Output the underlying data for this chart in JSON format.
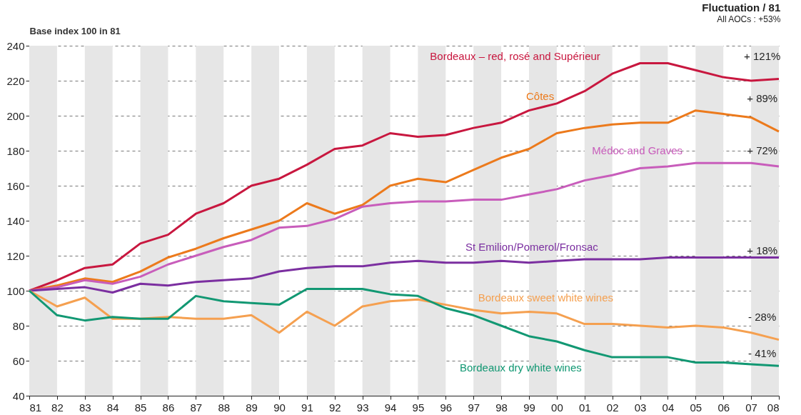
{
  "chart_data": {
    "type": "line",
    "title": "Fluctuation / 81",
    "subtitle": "All AOCs : +53%",
    "ylabel": "Base index 100 in 81",
    "categories": [
      "81",
      "82",
      "83",
      "84",
      "85",
      "86",
      "87",
      "88",
      "89",
      "90",
      "91",
      "92",
      "93",
      "94",
      "95",
      "96",
      "97",
      "98",
      "99",
      "00",
      "01",
      "02",
      "03",
      "04",
      "05",
      "06",
      "07",
      "08"
    ],
    "series": [
      {
        "name": "Bordeaux – red, rosé and Supérieur",
        "color": "#c8173f",
        "values": [
          100,
          106,
          113,
          115,
          127,
          132,
          144,
          150,
          160,
          164,
          172,
          181,
          183,
          190,
          188,
          189,
          193,
          196,
          203,
          207,
          214,
          224,
          230,
          230,
          226,
          222,
          220,
          221
        ]
      },
      {
        "name": "Côtes",
        "color": "#ec7a1c",
        "values": [
          100,
          103,
          107,
          105,
          111,
          119,
          124,
          130,
          135,
          140,
          150,
          144,
          149,
          160,
          164,
          162,
          169,
          176,
          181,
          190,
          193,
          195,
          196,
          196,
          203,
          201,
          199,
          191
        ]
      },
      {
        "name": "Médoc and Graves",
        "color": "#c85dbb",
        "values": [
          100,
          102,
          106,
          104,
          108,
          115,
          120,
          125,
          129,
          136,
          137,
          141,
          148,
          150,
          151,
          151,
          152,
          152,
          155,
          158,
          163,
          166,
          170,
          171,
          173,
          173,
          173,
          171
        ]
      },
      {
        "name": "St Emilion/Pomerol/Fronsac",
        "color": "#7b2fa0",
        "values": [
          100,
          101,
          102,
          99,
          104,
          103,
          105,
          106,
          107,
          111,
          113,
          114,
          114,
          116,
          117,
          116,
          116,
          117,
          116,
          117,
          118,
          118,
          118,
          119,
          119,
          119,
          119,
          119
        ]
      },
      {
        "name": "Bordeaux sweet white wines",
        "color": "#f5a050",
        "values": [
          100,
          91,
          96,
          84,
          84,
          85,
          84,
          84,
          86,
          76,
          88,
          80,
          91,
          94,
          95,
          92,
          89,
          87,
          88,
          87,
          81,
          81,
          80,
          79,
          80,
          79,
          76,
          72
        ]
      },
      {
        "name": "Bordeaux dry white wines",
        "color": "#129873",
        "values": [
          100,
          86,
          83,
          85,
          84,
          84,
          97,
          94,
          93,
          92,
          101,
          101,
          101,
          98,
          97,
          90,
          86,
          80,
          74,
          71,
          66,
          62,
          62,
          62,
          59,
          59,
          58,
          57
        ]
      }
    ],
    "annotations": [
      "+ 121%",
      "+ 89%",
      "+ 72%",
      "+ 18%",
      "- 28%",
      "- 41%"
    ],
    "bands": [
      {
        "axis": "x",
        "from": "81",
        "to": "82",
        "color": "#e6e6e6"
      },
      {
        "axis": "x",
        "from": "83",
        "to": "84",
        "color": "#e6e6e6"
      },
      {
        "axis": "x",
        "from": "85",
        "to": "86",
        "color": "#e6e6e6"
      },
      {
        "axis": "x",
        "from": "87",
        "to": "88",
        "color": "#e6e6e6"
      },
      {
        "axis": "x",
        "from": "89",
        "to": "90",
        "color": "#e6e6e6"
      },
      {
        "axis": "x",
        "from": "91",
        "to": "92",
        "color": "#e6e6e6"
      },
      {
        "axis": "x",
        "from": "93",
        "to": "94",
        "color": "#e6e6e6"
      },
      {
        "axis": "x",
        "from": "95",
        "to": "96",
        "color": "#e6e6e6"
      },
      {
        "axis": "x",
        "from": "97",
        "to": "98",
        "color": "#e6e6e6"
      },
      {
        "axis": "x",
        "from": "99",
        "to": "00",
        "color": "#e6e6e6"
      },
      {
        "axis": "x",
        "from": "01",
        "to": "02",
        "color": "#e6e6e6"
      },
      {
        "axis": "x",
        "from": "03",
        "to": "04",
        "color": "#e6e6e6"
      },
      {
        "axis": "x",
        "from": "05",
        "to": "06",
        "color": "#e6e6e6"
      },
      {
        "axis": "x",
        "from": "07",
        "to": "08",
        "color": "#e6e6e6"
      }
    ],
    "ylim": [
      40,
      240
    ],
    "yticks": [
      40,
      60,
      80,
      100,
      120,
      140,
      160,
      180,
      200,
      220,
      240
    ],
    "grid": "y",
    "line_style": "solid",
    "marker": "none"
  }
}
